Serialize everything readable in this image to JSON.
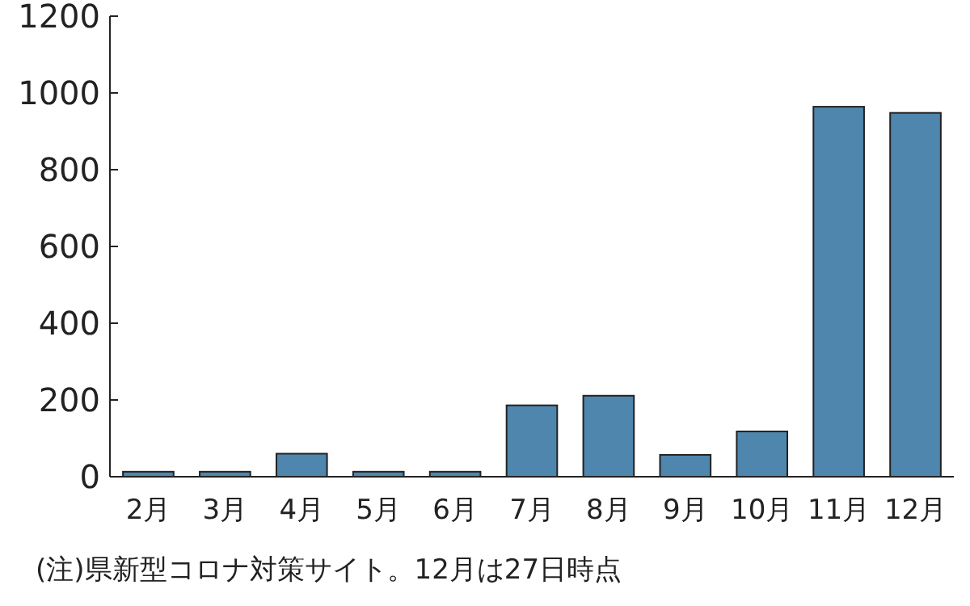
{
  "chart_data": {
    "type": "bar",
    "categories": [
      "2月",
      "3月",
      "4月",
      "5月",
      "6月",
      "7月",
      "8月",
      "9月",
      "10月",
      "11月",
      "12月"
    ],
    "values": [
      13,
      13,
      60,
      13,
      13,
      186,
      211,
      57,
      118,
      964,
      948
    ],
    "color": "#4e86ae",
    "ylim": [
      0,
      1200
    ],
    "yticks": [
      0,
      200,
      400,
      600,
      800,
      1000,
      1200
    ],
    "grid": false,
    "annotations": [
      "(注)県新型コロナ対策サイト。12月は27日時点"
    ]
  }
}
